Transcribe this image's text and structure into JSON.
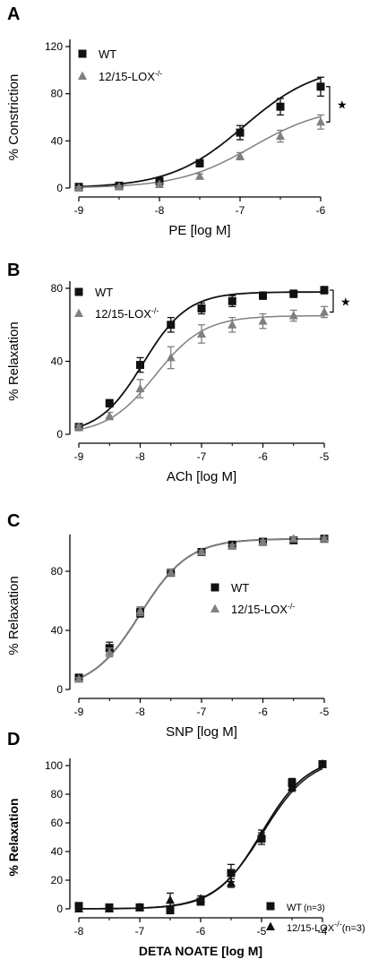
{
  "chart_data": [
    {
      "panel": "A",
      "type": "scatter",
      "xlabel": "PE [log M]",
      "ylabel": "% Constriction",
      "xlim": [
        -9,
        -6
      ],
      "ylim": [
        0,
        120
      ],
      "xticks": [
        "-9",
        "-8",
        "-7",
        "-6"
      ],
      "yticks": [
        "0",
        "40",
        "80",
        "120"
      ],
      "significance_marker": "★",
      "series": [
        {
          "name": "WT",
          "marker": "square",
          "color": "#111111",
          "x": [
            -9,
            -8.5,
            -8,
            -7.5,
            -7,
            -6.5,
            -6
          ],
          "y": [
            1,
            2,
            6,
            21,
            47,
            69,
            86
          ],
          "err": [
            1,
            1,
            2,
            3,
            6,
            7,
            8
          ]
        },
        {
          "name": "12/15-LOX-/-",
          "marker": "triangle",
          "color": "#808080",
          "x": [
            -9,
            -8.5,
            -8,
            -7.5,
            -7,
            -6.5,
            -6
          ],
          "y": [
            0,
            1,
            3,
            10,
            27,
            44,
            56
          ],
          "err": [
            1,
            1,
            1,
            2,
            3,
            5,
            6
          ]
        }
      ]
    },
    {
      "panel": "B",
      "type": "scatter",
      "xlabel": "ACh [log M]",
      "ylabel": "% Relaxation",
      "xlim": [
        -9,
        -5
      ],
      "ylim": [
        0,
        80
      ],
      "xticks": [
        "-9",
        "-8",
        "-7",
        "-6",
        "-5"
      ],
      "yticks": [
        "0",
        "40",
        "80"
      ],
      "significance_marker": "★",
      "series": [
        {
          "name": "WT",
          "marker": "square",
          "color": "#111111",
          "x": [
            -9,
            -8.5,
            -8,
            -7.5,
            -7,
            -6.5,
            -6,
            -5.5,
            -5
          ],
          "y": [
            4,
            17,
            38,
            60,
            69,
            73,
            76,
            77,
            79
          ],
          "err": [
            1,
            2,
            4,
            4,
            3,
            3,
            2,
            2,
            2
          ]
        },
        {
          "name": "12/15-LOX-/-",
          "marker": "triangle",
          "color": "#808080",
          "x": [
            -9,
            -8.5,
            -8,
            -7.5,
            -7,
            -6.5,
            -6,
            -5.5,
            -5
          ],
          "y": [
            4,
            10,
            25,
            42,
            55,
            60,
            62,
            65,
            67
          ],
          "err": [
            1,
            2,
            5,
            6,
            5,
            4,
            4,
            3,
            3
          ]
        }
      ]
    },
    {
      "panel": "C",
      "type": "scatter",
      "xlabel": "SNP [log M]",
      "ylabel": "% Relaxation",
      "xlim": [
        -9,
        -5
      ],
      "ylim": [
        0,
        100
      ],
      "xticks": [
        "-9",
        "-8",
        "-7",
        "-6",
        "-5"
      ],
      "yticks": [
        "0",
        "40",
        "80"
      ],
      "series": [
        {
          "name": "WT",
          "marker": "square",
          "color": "#111111",
          "x": [
            -9,
            -8.5,
            -8,
            -7.5,
            -7,
            -6.5,
            -6,
            -5.5,
            -5
          ],
          "y": [
            8,
            28,
            52,
            79,
            93,
            98,
            100,
            101,
            102
          ],
          "err": [
            1,
            4,
            3,
            2,
            1,
            1,
            1,
            1,
            1
          ]
        },
        {
          "name": "12/15-LOX-/-",
          "marker": "triangle",
          "color": "#808080",
          "x": [
            -9,
            -8.5,
            -8,
            -7.5,
            -7,
            -6.5,
            -6,
            -5.5,
            -5
          ],
          "y": [
            7,
            25,
            53,
            79,
            93,
            97,
            100,
            102,
            102
          ],
          "err": [
            1,
            3,
            3,
            2,
            1,
            1,
            1,
            1,
            1
          ]
        }
      ]
    },
    {
      "panel": "D",
      "type": "scatter",
      "xlabel": "DETA NOATE [log M]",
      "ylabel": "% Relaxation",
      "xlim": [
        -8,
        -4
      ],
      "ylim": [
        0,
        100
      ],
      "xticks": [
        "-8",
        "-7",
        "-6",
        "-5",
        "-4"
      ],
      "yticks": [
        "0",
        "20",
        "40",
        "60",
        "80",
        "100"
      ],
      "series": [
        {
          "name": "WT",
          "legend_suffix": "(n=3)",
          "marker": "square",
          "color": "#111111",
          "x": [
            -8,
            -7.5,
            -7,
            -6.5,
            -6,
            -5.5,
            -5,
            -4.5,
            -4
          ],
          "y": [
            2,
            1,
            1,
            -1,
            5,
            25,
            49,
            88,
            101
          ],
          "err": [
            1,
            1,
            1,
            1,
            2,
            6,
            4,
            3,
            1
          ]
        },
        {
          "name": "12/15-LOX",
          "name_superscript": "-/-",
          "legend_suffix": "(n=3)",
          "marker": "triangle",
          "color": "#111111",
          "x": [
            -8,
            -7.5,
            -7,
            -6.5,
            -6,
            -5.5,
            -5,
            -4.5,
            -4
          ],
          "y": [
            0,
            0,
            1,
            6,
            7,
            18,
            52,
            85,
            101
          ],
          "err": [
            1,
            1,
            1,
            5,
            2,
            3,
            3,
            3,
            1
          ]
        }
      ]
    }
  ],
  "legend_sup": "-/-"
}
